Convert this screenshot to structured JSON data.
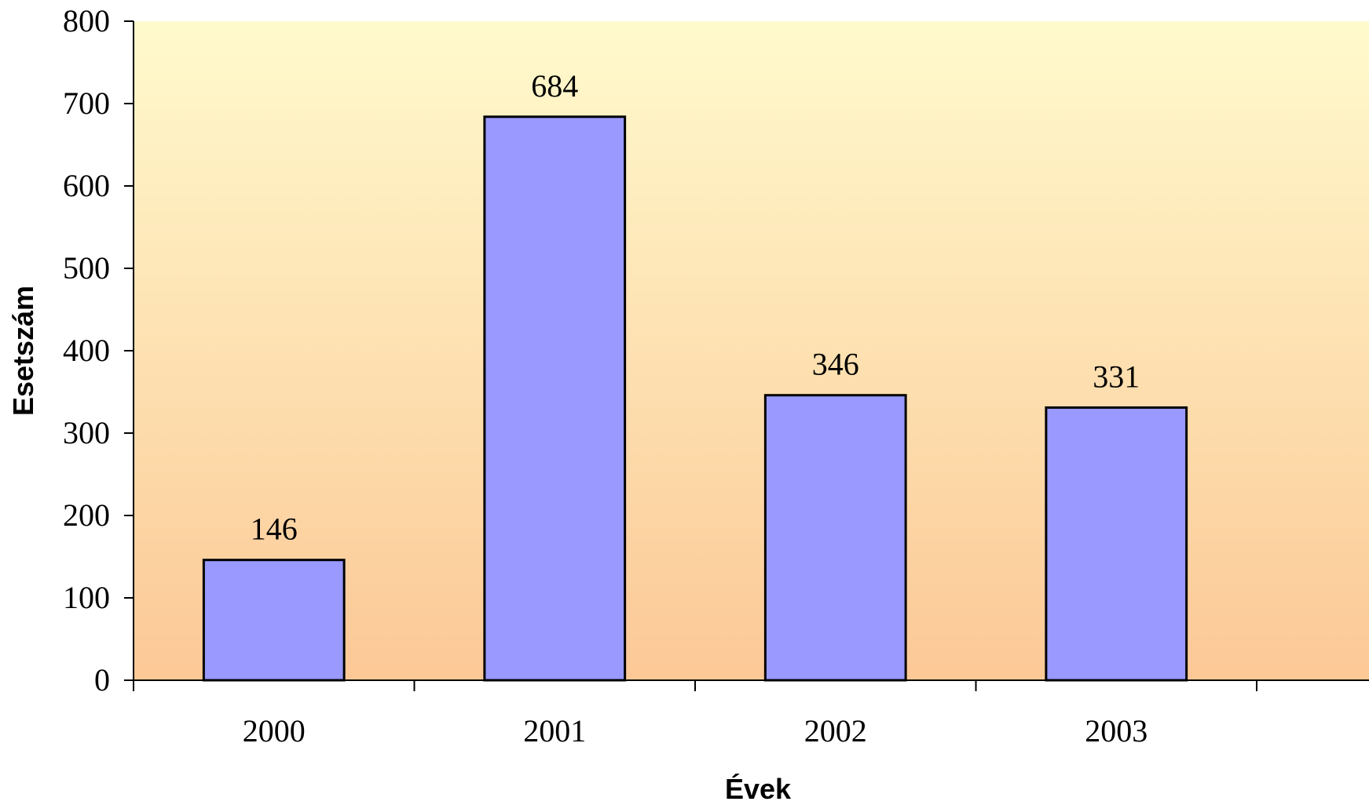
{
  "chart_data": {
    "type": "bar",
    "title": "",
    "xlabel": "Évek",
    "ylabel": "Esetszám",
    "categories": [
      "2000",
      "2001",
      "2002",
      "2003"
    ],
    "values": [
      146,
      684,
      346,
      331
    ],
    "data_labels": [
      "146",
      "684",
      "346",
      "331"
    ],
    "ylim": [
      0,
      800
    ],
    "yticks": [
      0,
      100,
      200,
      300,
      400,
      500,
      600,
      700,
      800
    ],
    "grid": false,
    "legend": "none",
    "colors": {
      "bar_fill": "#9999ff",
      "bar_stroke": "#000000",
      "plot_bg_top": "#fffacd",
      "plot_bg_bottom": "#fcc896"
    }
  }
}
